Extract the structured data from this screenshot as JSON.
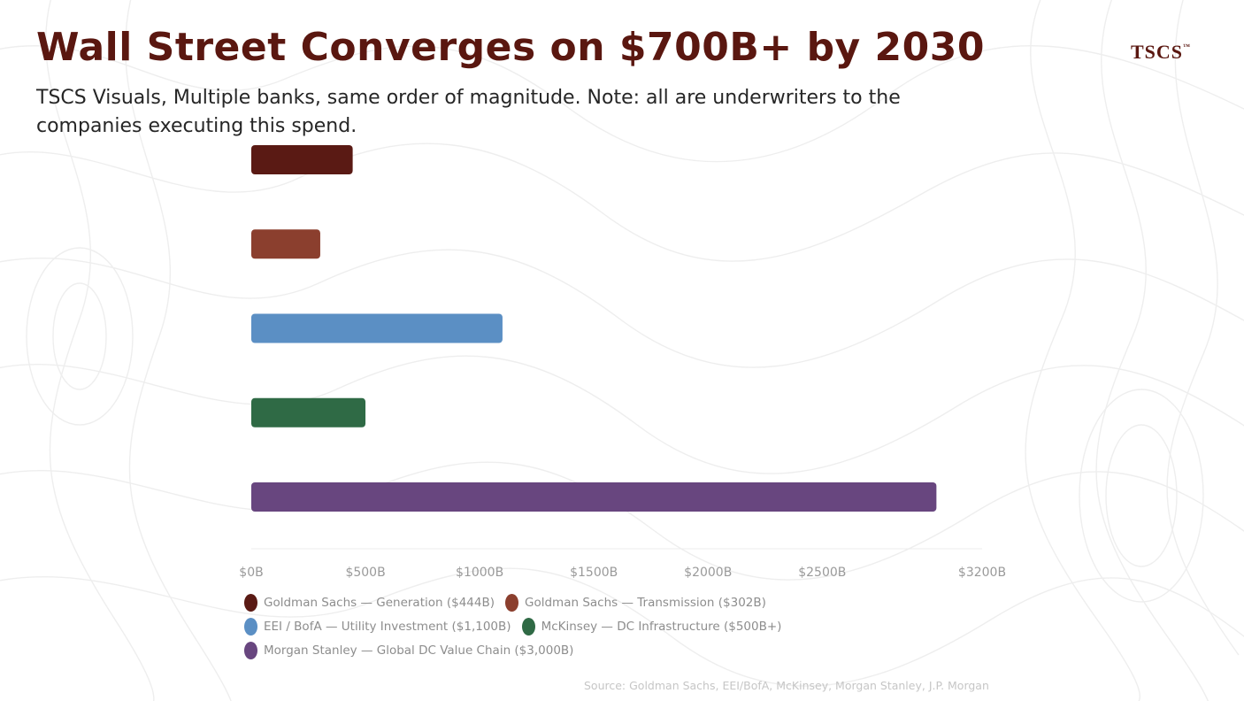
{
  "header": {
    "title": "Wall Street Converges on $700B+ by 2030",
    "subtitle": "TSCS Visuals, Multiple banks, same order of magnitude. Note: all are underwriters to the companies executing this spend.",
    "logo_text": "TSCS",
    "logo_mark": "™"
  },
  "chart_data": {
    "type": "bar",
    "orientation": "horizontal",
    "title": "Wall Street Converges on $700B+ by 2030",
    "xlabel": "",
    "ylabel": "",
    "xlim": [
      0,
      3200
    ],
    "x_ticks": [
      {
        "value": 0,
        "label": "$0B"
      },
      {
        "value": 500,
        "label": "$500B"
      },
      {
        "value": 1000,
        "label": "$1000B"
      },
      {
        "value": 1500,
        "label": "$1500B"
      },
      {
        "value": 2000,
        "label": "$2000B"
      },
      {
        "value": 2500,
        "label": "$2500B"
      },
      {
        "value": 3200,
        "label": "$3200B"
      }
    ],
    "grid": false,
    "legend_position": "bottom-left",
    "series": [
      {
        "name": "Goldman Sachs — Generation ($444B)",
        "value": 444,
        "color": "#5a1a14"
      },
      {
        "name": "Goldman Sachs — Transmission ($302B)",
        "value": 302,
        "color": "#8b3f2e"
      },
      {
        "name": "EEI / BofA — Utility Investment ($1,100B)",
        "value": 1100,
        "color": "#5b8fc4"
      },
      {
        "name": "McKinsey — DC Infrastructure ($500B+)",
        "value": 500,
        "color": "#2f6a45"
      },
      {
        "name": "Morgan Stanley — Global DC Value Chain ($3,000B)",
        "value": 3000,
        "color": "#68467f"
      }
    ]
  },
  "source": "Source: Goldman Sachs, EEI/BofA, McKinsey, Morgan Stanley, J.P. Morgan"
}
